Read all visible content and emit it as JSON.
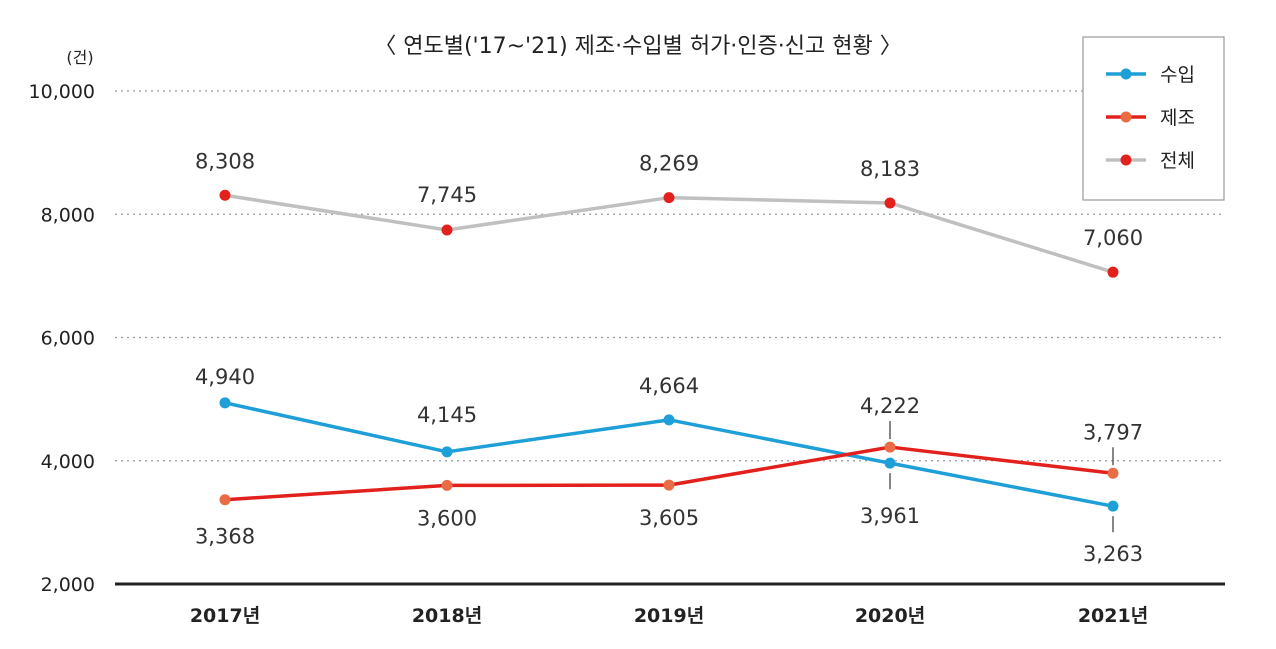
{
  "chart_data": {
    "type": "line",
    "title": "〈 연도별('17~'21) 제조·수입별 허가·인증·신고 현황 〉",
    "unit": "(건)",
    "categories": [
      "2017년",
      "2018년",
      "2019년",
      "2020년",
      "2021년"
    ],
    "ylim": [
      2000,
      10000
    ],
    "yticks": [
      2000,
      4000,
      6000,
      8000,
      10000
    ],
    "ytick_labels": [
      "2,000",
      "4,000",
      "6,000",
      "8,000",
      "10,000"
    ],
    "grid": true,
    "legend_position": "top-right",
    "series": [
      {
        "name": "수입",
        "values": [
          4940,
          4145,
          4664,
          3961,
          3263
        ],
        "labels": [
          "4,940",
          "4,145",
          "4,664",
          "3,961",
          "3,263"
        ],
        "line_color": "#1e9fd8",
        "marker_color": "#1e9fd8"
      },
      {
        "name": "제조",
        "values": [
          3368,
          3600,
          3605,
          4222,
          3797
        ],
        "labels": [
          "3,368",
          "3,600",
          "3,605",
          "4,222",
          "3,797"
        ],
        "line_color": "#e2211c",
        "marker_color": "#ea6c45"
      },
      {
        "name": "전체",
        "values": [
          8308,
          7745,
          8269,
          8183,
          7060
        ],
        "labels": [
          "8,308",
          "7,745",
          "8,269",
          "8,183",
          "7,060"
        ],
        "line_color": "#c0c0c0",
        "marker_color": "#e2211c"
      }
    ]
  }
}
